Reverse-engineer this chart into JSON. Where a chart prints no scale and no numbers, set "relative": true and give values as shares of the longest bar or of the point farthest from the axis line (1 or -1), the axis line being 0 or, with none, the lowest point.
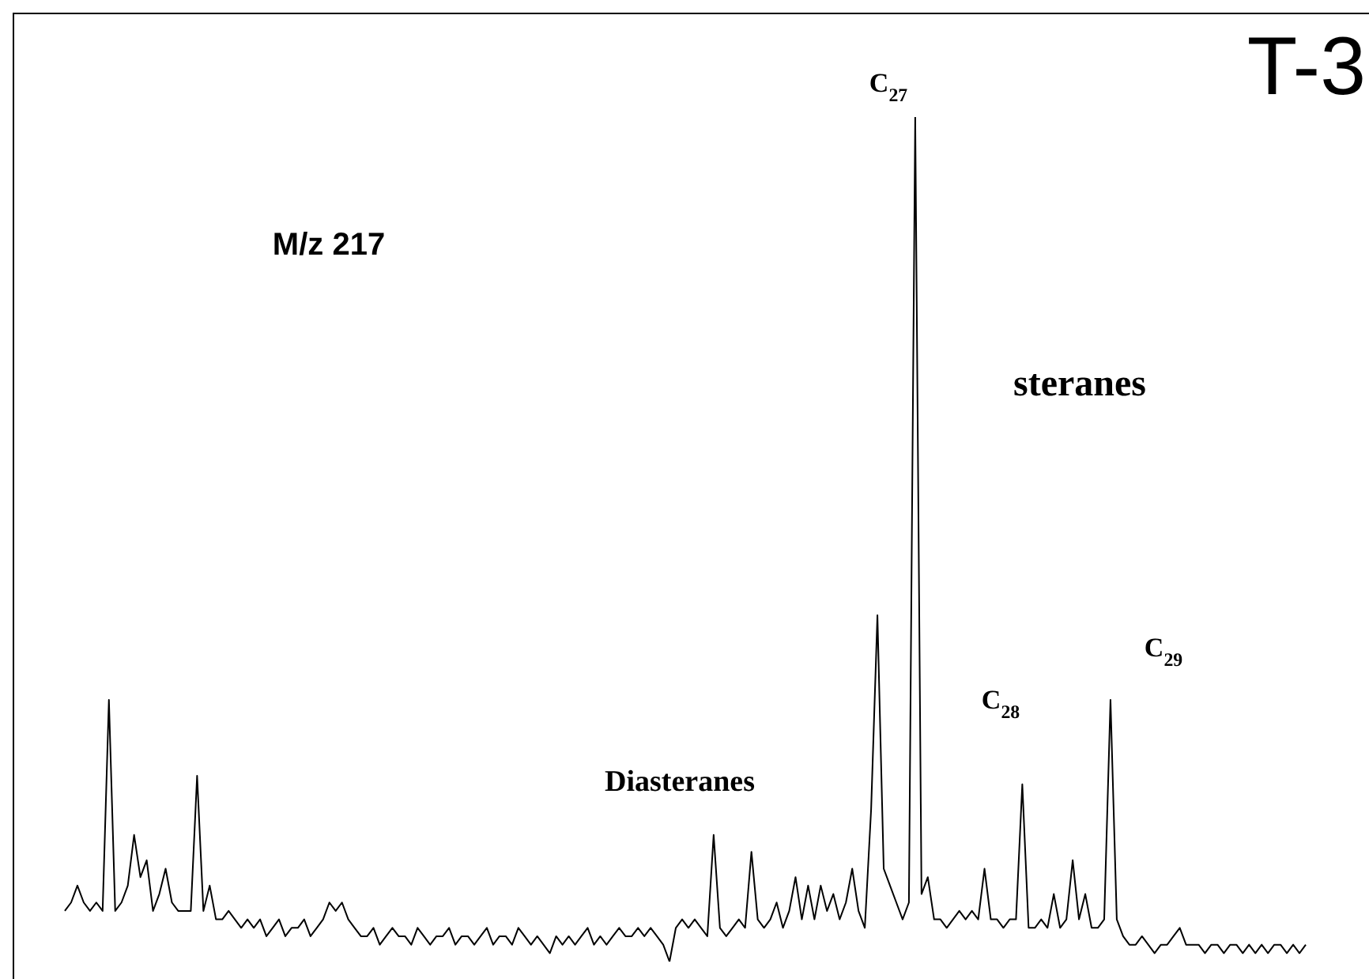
{
  "chart_data": {
    "type": "line",
    "relative": true,
    "title": "T-3",
    "annotations": [
      "M/z 217",
      "C$_{27}$",
      "steranes",
      "C$_{28}$",
      "C$_{29}$",
      "Diasteranes"
    ],
    "categories": [
      null,
      null,
      null,
      null,
      null,
      null,
      null,
      null,
      null,
      null,
      null,
      null,
      null,
      null,
      null,
      null,
      null,
      null,
      null,
      null,
      null,
      null,
      null,
      null,
      null,
      null,
      null,
      null,
      null,
      null,
      null,
      null,
      null,
      null,
      null,
      null,
      null,
      null,
      null,
      null,
      null,
      null,
      null,
      null,
      null,
      null,
      null,
      null,
      null,
      null,
      null,
      null,
      null,
      null,
      null,
      null,
      null,
      null,
      null,
      null,
      null,
      null,
      null,
      null,
      null,
      null,
      null,
      null,
      null,
      null,
      null,
      null,
      null,
      null,
      null,
      null,
      null,
      null,
      null,
      null,
      null,
      null,
      null,
      null,
      null,
      null,
      null,
      null,
      null,
      null,
      null,
      null,
      null,
      null,
      null,
      null,
      null,
      null,
      null,
      null,
      null,
      null,
      null,
      null,
      null,
      null,
      null,
      null,
      null,
      null,
      null,
      null,
      null,
      null,
      null,
      null,
      null,
      null,
      null,
      null,
      null,
      null,
      null,
      null,
      null,
      null,
      null,
      null,
      null,
      null,
      null,
      null,
      null,
      null,
      null,
      null,
      null,
      null,
      null,
      null,
      null,
      null,
      null,
      null,
      null,
      null,
      null,
      null,
      null,
      null,
      null,
      null,
      null,
      null,
      null,
      null,
      null,
      null,
      null,
      null,
      null,
      null,
      null,
      null,
      null,
      null,
      null,
      null,
      null,
      null,
      null,
      null,
      null,
      null,
      null,
      null,
      null,
      null,
      null,
      null,
      null,
      null,
      null,
      null,
      null,
      null,
      null,
      null,
      null,
      null,
      null,
      null,
      null,
      null,
      null,
      null,
      null,
      null
    ],
    "series": [
      {
        "color": "#000000",
        "values": [
          0.06,
          0.07,
          0.09,
          0.07,
          0.06,
          0.07,
          0.06,
          0.31,
          0.06,
          0.07,
          0.09,
          0.15,
          0.1,
          0.12,
          0.06,
          0.08,
          0.11,
          0.07,
          0.06,
          0.06,
          0.06,
          0.22,
          0.06,
          0.09,
          0.05,
          0.05,
          0.06,
          0.05,
          0.04,
          0.05,
          0.04,
          0.05,
          0.03,
          0.04,
          0.05,
          0.03,
          0.04,
          0.04,
          0.05,
          0.03,
          0.04,
          0.05,
          0.07,
          0.06,
          0.07,
          0.05,
          0.04,
          0.03,
          0.03,
          0.04,
          0.02,
          0.03,
          0.04,
          0.03,
          0.03,
          0.02,
          0.04,
          0.03,
          0.02,
          0.03,
          0.03,
          0.04,
          0.02,
          0.03,
          0.03,
          0.02,
          0.03,
          0.04,
          0.02,
          0.03,
          0.03,
          0.02,
          0.04,
          0.03,
          0.02,
          0.03,
          0.02,
          0.01,
          0.03,
          0.02,
          0.03,
          0.02,
          0.03,
          0.04,
          0.02,
          0.03,
          0.02,
          0.03,
          0.04,
          0.03,
          0.03,
          0.04,
          0.03,
          0.04,
          0.03,
          0.02,
          0,
          0.04,
          0.05,
          0.04,
          0.05,
          0.04,
          0.03,
          0.15,
          0.04,
          0.03,
          0.04,
          0.05,
          0.04,
          0.13,
          0.05,
          0.04,
          0.05,
          0.07,
          0.04,
          0.06,
          0.1,
          0.05,
          0.09,
          0.05,
          0.09,
          0.06,
          0.08,
          0.05,
          0.07,
          0.11,
          0.06,
          0.04,
          0.18,
          0.41,
          0.11,
          0.09,
          0.07,
          0.05,
          0.07,
          1.0,
          0.08,
          0.1,
          0.05,
          0.05,
          0.04,
          0.05,
          0.06,
          0.05,
          0.06,
          0.05,
          0.11,
          0.05,
          0.05,
          0.04,
          0.05,
          0.05,
          0.21,
          0.04,
          0.04,
          0.05,
          0.04,
          0.08,
          0.04,
          0.05,
          0.12,
          0.05,
          0.08,
          0.04,
          0.04,
          0.05,
          0.31,
          0.05,
          0.03,
          0.02,
          0.02,
          0.03,
          0.02,
          0.01,
          0.02,
          0.02,
          0.03,
          0.04,
          0.02,
          0.02,
          0.02,
          0.01,
          0.02,
          0.02,
          0.01,
          0.02,
          0.02,
          0.01,
          0.02,
          0.01,
          0.02,
          0.01,
          0.02,
          0.02,
          0.01,
          0.02,
          0.01,
          0.02
        ]
      }
    ]
  }
}
